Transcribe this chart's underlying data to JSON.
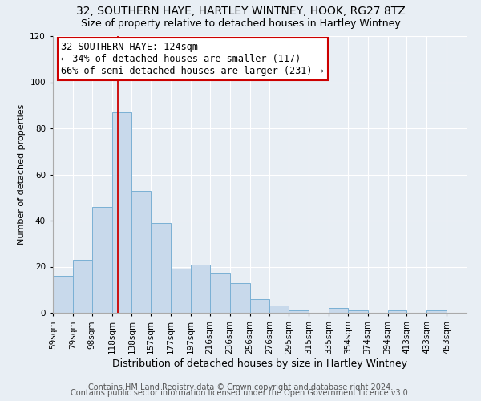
{
  "title": "32, SOUTHERN HAYE, HARTLEY WINTNEY, HOOK, RG27 8TZ",
  "subtitle": "Size of property relative to detached houses in Hartley Wintney",
  "xlabel": "Distribution of detached houses by size in Hartley Wintney",
  "ylabel": "Number of detached properties",
  "bin_labels": [
    "59sqm",
    "79sqm",
    "98sqm",
    "118sqm",
    "138sqm",
    "157sqm",
    "177sqm",
    "197sqm",
    "216sqm",
    "236sqm",
    "256sqm",
    "276sqm",
    "295sqm",
    "315sqm",
    "335sqm",
    "354sqm",
    "374sqm",
    "394sqm",
    "413sqm",
    "433sqm",
    "453sqm"
  ],
  "bin_edges": [
    59,
    79,
    98,
    118,
    138,
    157,
    177,
    197,
    216,
    236,
    256,
    276,
    295,
    315,
    335,
    354,
    374,
    394,
    413,
    433,
    453,
    473
  ],
  "bar_heights": [
    16,
    23,
    46,
    87,
    53,
    39,
    19,
    21,
    17,
    13,
    6,
    3,
    1,
    0,
    2,
    1,
    0,
    1,
    0,
    1,
    0
  ],
  "bar_color": "#c8d9eb",
  "bar_edgecolor": "#7ab0d4",
  "vline_x": 124,
  "vline_color": "#cc0000",
  "annotation_line1": "32 SOUTHERN HAYE: 124sqm",
  "annotation_line2": "← 34% of detached houses are smaller (117)",
  "annotation_line3": "66% of semi-detached houses are larger (231) →",
  "ylim": [
    0,
    120
  ],
  "yticks": [
    0,
    20,
    40,
    60,
    80,
    100,
    120
  ],
  "background_color": "#e8eef4",
  "plot_background": "#e8eef4",
  "footer_line1": "Contains HM Land Registry data © Crown copyright and database right 2024.",
  "footer_line2": "Contains public sector information licensed under the Open Government Licence v3.0.",
  "title_fontsize": 10,
  "subtitle_fontsize": 9,
  "xlabel_fontsize": 9,
  "ylabel_fontsize": 8,
  "tick_fontsize": 7.5,
  "annotation_fontsize": 8.5,
  "footer_fontsize": 7
}
